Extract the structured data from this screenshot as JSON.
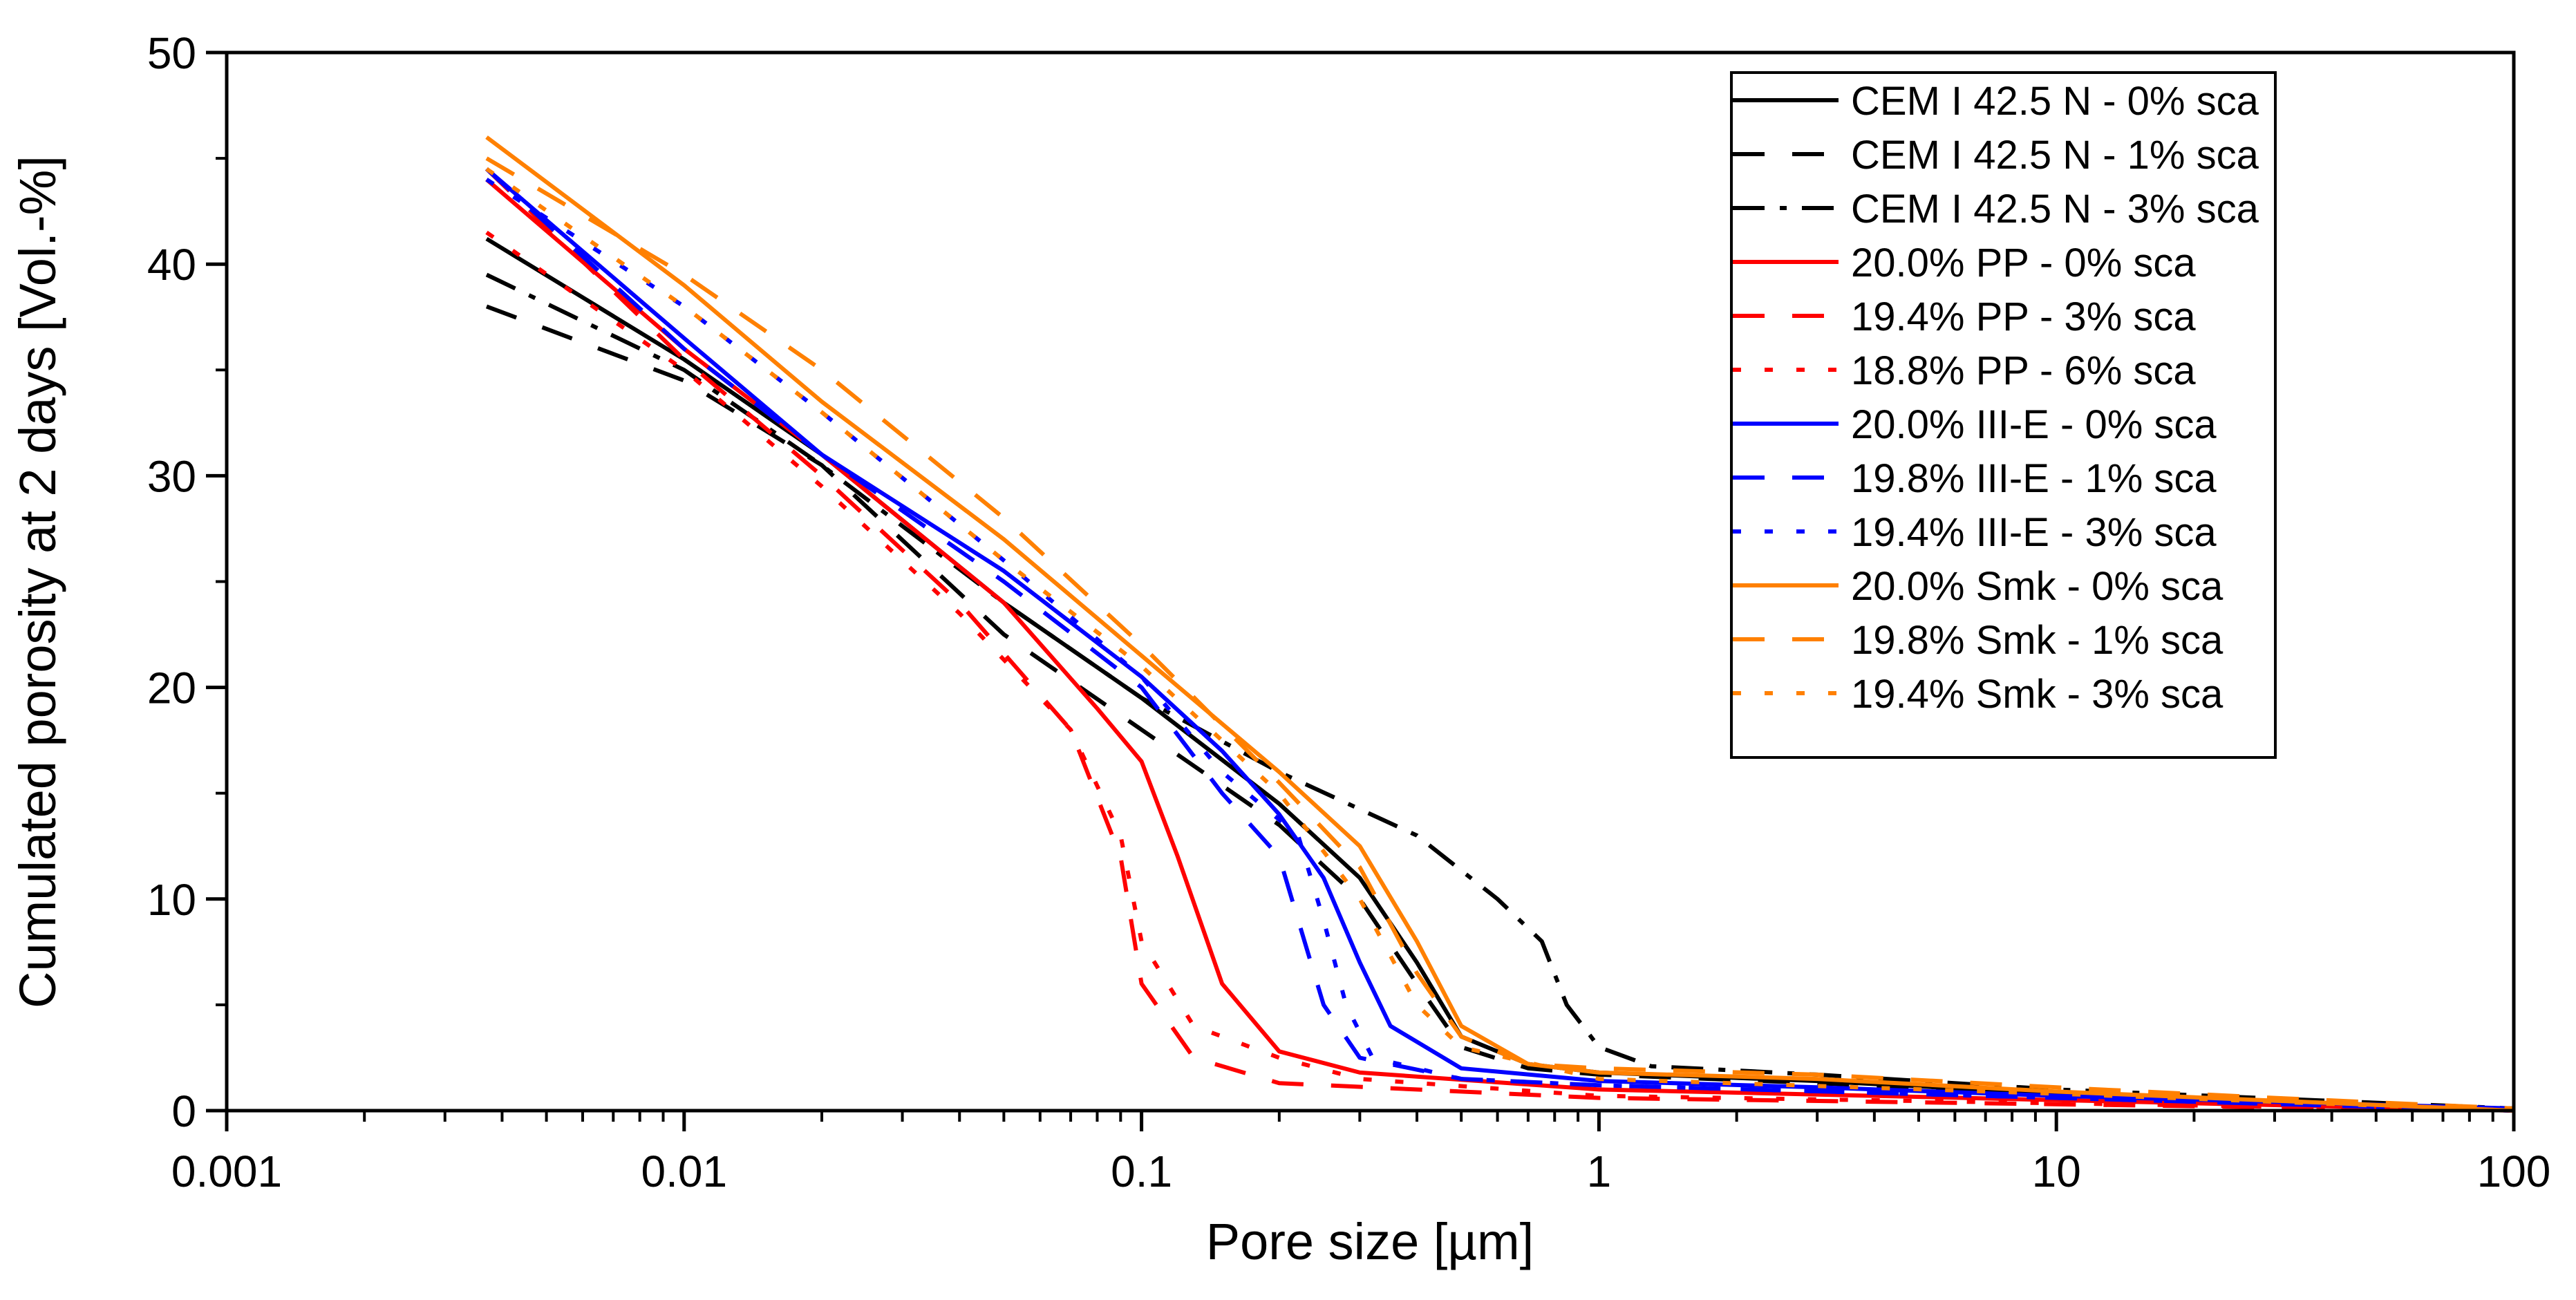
{
  "chart_data": {
    "type": "line",
    "title": "",
    "xlabel": "Pore size [µm]",
    "ylabel": "Cumulated porosity at 2 days [Vol.-%]",
    "xscale": "log",
    "xlim": [
      0.001,
      100
    ],
    "ylim": [
      0,
      50
    ],
    "xticks": [
      0.001,
      0.01,
      0.1,
      1,
      10,
      100
    ],
    "xtick_labels": [
      "0.001",
      "0.01",
      "0.1",
      "1",
      "10",
      "100"
    ],
    "yticks": [
      0,
      10,
      20,
      30,
      40,
      50
    ],
    "ytick_labels": [
      "0",
      "10",
      "20",
      "30",
      "40",
      "50"
    ],
    "grid": false,
    "legend_position": "top-right",
    "series": [
      {
        "name": "CEM I 42.5 N - 0% sca",
        "color": "#000000",
        "style": "solid",
        "points": [
          [
            0.0037,
            41.2
          ],
          [
            0.01,
            35.5
          ],
          [
            0.02,
            31
          ],
          [
            0.05,
            24
          ],
          [
            0.1,
            19.5
          ],
          [
            0.2,
            14.5
          ],
          [
            0.3,
            11
          ],
          [
            0.4,
            7
          ],
          [
            0.5,
            3.5
          ],
          [
            0.7,
            2.2
          ],
          [
            1,
            1.8
          ],
          [
            3,
            1.4
          ],
          [
            10,
            0.8
          ],
          [
            30,
            0.4
          ],
          [
            100,
            0
          ]
        ]
      },
      {
        "name": "CEM I 42.5 N - 1% sca",
        "color": "#000000",
        "style": "dashed",
        "points": [
          [
            0.0037,
            38
          ],
          [
            0.01,
            34.5
          ],
          [
            0.02,
            30.5
          ],
          [
            0.05,
            22.5
          ],
          [
            0.1,
            18
          ],
          [
            0.2,
            13.5
          ],
          [
            0.3,
            10
          ],
          [
            0.4,
            6
          ],
          [
            0.5,
            3
          ],
          [
            0.7,
            2
          ],
          [
            1,
            1.7
          ],
          [
            3,
            1.3
          ],
          [
            10,
            0.8
          ],
          [
            100,
            0
          ]
        ]
      },
      {
        "name": "CEM I 42.5 N - 3% sca",
        "color": "#000000",
        "style": "dashdot",
        "points": [
          [
            0.0037,
            39.5
          ],
          [
            0.01,
            35
          ],
          [
            0.02,
            30.5
          ],
          [
            0.05,
            24
          ],
          [
            0.1,
            19.5
          ],
          [
            0.2,
            16
          ],
          [
            0.4,
            13
          ],
          [
            0.6,
            10
          ],
          [
            0.75,
            8
          ],
          [
            0.85,
            5
          ],
          [
            1,
            3
          ],
          [
            1.3,
            2.1
          ],
          [
            3,
            1.7
          ],
          [
            10,
            1
          ],
          [
            100,
            0.1
          ]
        ]
      },
      {
        "name": "20.0% PP - 0% sca",
        "color": "#ff0000",
        "style": "solid",
        "points": [
          [
            0.0037,
            44
          ],
          [
            0.01,
            36
          ],
          [
            0.02,
            31
          ],
          [
            0.05,
            24
          ],
          [
            0.08,
            19
          ],
          [
            0.1,
            16.5
          ],
          [
            0.12,
            12
          ],
          [
            0.15,
            6
          ],
          [
            0.2,
            2.8
          ],
          [
            0.3,
            1.8
          ],
          [
            1,
            1
          ],
          [
            10,
            0.5
          ],
          [
            100,
            0
          ]
        ]
      },
      {
        "name": "19.4% PP - 3% sca",
        "color": "#ff0000",
        "style": "dashed",
        "points": [
          [
            0.0037,
            44.5
          ],
          [
            0.01,
            35.5
          ],
          [
            0.02,
            30
          ],
          [
            0.04,
            24
          ],
          [
            0.07,
            18
          ],
          [
            0.09,
            12
          ],
          [
            0.1,
            6
          ],
          [
            0.13,
            2.5
          ],
          [
            0.2,
            1.3
          ],
          [
            1,
            0.6
          ],
          [
            100,
            0
          ]
        ]
      },
      {
        "name": "18.8% PP - 6% sca",
        "color": "#ff0000",
        "style": "dotted",
        "points": [
          [
            0.0037,
            41.5
          ],
          [
            0.01,
            35
          ],
          [
            0.02,
            29.5
          ],
          [
            0.04,
            23.5
          ],
          [
            0.07,
            18
          ],
          [
            0.09,
            13
          ],
          [
            0.1,
            8
          ],
          [
            0.13,
            4
          ],
          [
            0.2,
            2.5
          ],
          [
            0.3,
            1.5
          ],
          [
            1,
            0.7
          ],
          [
            100,
            0
          ]
        ]
      },
      {
        "name": "20.0% III-E - 0% sca",
        "color": "#0000ff",
        "style": "solid",
        "points": [
          [
            0.0037,
            44.5
          ],
          [
            0.01,
            36.5
          ],
          [
            0.02,
            31
          ],
          [
            0.05,
            25.5
          ],
          [
            0.1,
            20.5
          ],
          [
            0.15,
            17
          ],
          [
            0.2,
            14
          ],
          [
            0.25,
            11
          ],
          [
            0.3,
            7
          ],
          [
            0.35,
            4
          ],
          [
            0.5,
            2
          ],
          [
            1,
            1.4
          ],
          [
            3,
            1.1
          ],
          [
            10,
            0.7
          ],
          [
            100,
            0.1
          ]
        ]
      },
      {
        "name": "19.8% III-E - 1% sca",
        "color": "#0000ff",
        "style": "dashed",
        "points": [
          [
            0.0037,
            44.5
          ],
          [
            0.01,
            36
          ],
          [
            0.02,
            31
          ],
          [
            0.05,
            25
          ],
          [
            0.1,
            20
          ],
          [
            0.15,
            15
          ],
          [
            0.2,
            12
          ],
          [
            0.22,
            9
          ],
          [
            0.25,
            5
          ],
          [
            0.3,
            2.5
          ],
          [
            0.5,
            1.5
          ],
          [
            1,
            1.2
          ],
          [
            10,
            0.6
          ],
          [
            100,
            0
          ]
        ]
      },
      {
        "name": "19.4% III-E - 3% sca",
        "color": "#0000ff",
        "style": "dotted",
        "points": [
          [
            0.0037,
            44
          ],
          [
            0.01,
            38
          ],
          [
            0.02,
            33
          ],
          [
            0.05,
            26
          ],
          [
            0.1,
            20.5
          ],
          [
            0.15,
            16
          ],
          [
            0.22,
            13
          ],
          [
            0.25,
            9
          ],
          [
            0.28,
            5
          ],
          [
            0.32,
            2.5
          ],
          [
            0.5,
            1.5
          ],
          [
            1,
            1.2
          ],
          [
            10,
            0.6
          ],
          [
            100,
            0
          ]
        ]
      },
      {
        "name": "20.0% Smk - 0% sca",
        "color": "#ff8000",
        "style": "solid",
        "points": [
          [
            0.0037,
            46
          ],
          [
            0.01,
            39
          ],
          [
            0.02,
            33.5
          ],
          [
            0.05,
            27
          ],
          [
            0.1,
            21.5
          ],
          [
            0.2,
            16
          ],
          [
            0.3,
            12.5
          ],
          [
            0.4,
            8
          ],
          [
            0.5,
            4
          ],
          [
            0.7,
            2.2
          ],
          [
            1,
            1.8
          ],
          [
            3,
            1.5
          ],
          [
            10,
            0.9
          ],
          [
            100,
            0
          ]
        ]
      },
      {
        "name": "19.8% Smk - 1% sca",
        "color": "#ff8000",
        "style": "dashed",
        "points": [
          [
            0.0037,
            45
          ],
          [
            0.01,
            39.5
          ],
          [
            0.02,
            35
          ],
          [
            0.05,
            28
          ],
          [
            0.1,
            22
          ],
          [
            0.2,
            15.5
          ],
          [
            0.3,
            11.5
          ],
          [
            0.4,
            6.5
          ],
          [
            0.5,
            3.5
          ],
          [
            0.7,
            2.2
          ],
          [
            1,
            2
          ],
          [
            3,
            1.7
          ],
          [
            10,
            1.1
          ],
          [
            30,
            0.6
          ],
          [
            100,
            0.1
          ]
        ]
      },
      {
        "name": "19.4% Smk - 3% sca",
        "color": "#ff8000",
        "style": "dotted",
        "points": [
          [
            0.0037,
            44.5
          ],
          [
            0.01,
            38
          ],
          [
            0.02,
            33
          ],
          [
            0.05,
            26
          ],
          [
            0.1,
            21
          ],
          [
            0.2,
            15
          ],
          [
            0.3,
            10
          ],
          [
            0.4,
            5
          ],
          [
            0.5,
            3
          ],
          [
            1,
            1.5
          ],
          [
            10,
            0.8
          ],
          [
            100,
            0
          ]
        ]
      }
    ]
  }
}
